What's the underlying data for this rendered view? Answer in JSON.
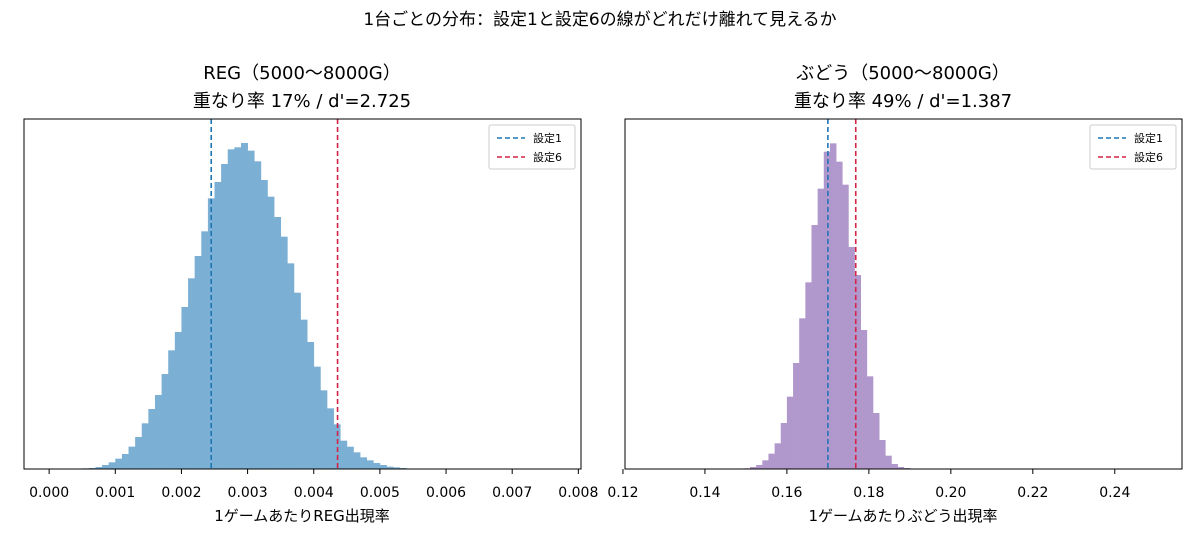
{
  "suptitle": "1台ごとの分布：設定1と設定6の線がどれだけ離れて見えるか",
  "colors": {
    "reg_bar": "#7bafd4",
    "budou_bar": "#b198cc",
    "setting1_line": "#1f77b4",
    "setting6_line": "#d62246"
  },
  "legend": {
    "setting1": "設定1",
    "setting6": "設定6",
    "placement": "upper right"
  },
  "chart_data": [
    {
      "type": "bar",
      "subtype": "histogram",
      "title_line1": "REG（5000〜8000G）",
      "title_line2": "重なり率 17% / d'=2.725",
      "xlabel": "1ゲームあたりREG出現率",
      "ylabel": "",
      "xlim": [
        -0.00038,
        0.00804
      ],
      "ylim": [
        0,
        1.05
      ],
      "xticks": [
        0.0,
        0.001,
        0.002,
        0.003,
        0.004,
        0.005,
        0.006,
        0.007,
        0.008
      ],
      "xtick_labels": [
        "0.000",
        "0.001",
        "0.002",
        "0.003",
        "0.004",
        "0.005",
        "0.006",
        "0.007",
        "0.008"
      ],
      "y_axis_visible": false,
      "bin_width": 0.0001,
      "bins": {
        "start": 0.0004,
        "values": [
          0.001,
          0.002,
          0.003,
          0.006,
          0.012,
          0.02,
          0.031,
          0.045,
          0.067,
          0.096,
          0.137,
          0.18,
          0.222,
          0.285,
          0.356,
          0.411,
          0.486,
          0.572,
          0.639,
          0.713,
          0.812,
          0.861,
          0.915,
          0.959,
          0.965,
          0.978,
          0.955,
          0.923,
          0.867,
          0.817,
          0.756,
          0.697,
          0.617,
          0.529,
          0.448,
          0.381,
          0.307,
          0.236,
          0.182,
          0.134,
          0.085,
          0.067,
          0.05,
          0.035,
          0.026,
          0.018,
          0.012,
          0.007,
          0.005,
          0.003,
          0.001,
          0.001
        ]
      },
      "vlines": [
        {
          "series": "setting1",
          "x": 0.00245
        },
        {
          "series": "setting6",
          "x": 0.00436
        }
      ]
    },
    {
      "type": "bar",
      "subtype": "histogram",
      "title_line1": "ぶどう（5000〜8000G）",
      "title_line2": "重なり率 49% / d'=1.387",
      "xlabel": "1ゲームあたりぶどう出現率",
      "ylabel": "",
      "xlim": [
        0.1205,
        0.2564
      ],
      "ylim": [
        0,
        1.05
      ],
      "xticks": [
        0.12,
        0.14,
        0.16,
        0.18,
        0.2,
        0.22,
        0.24
      ],
      "xtick_labels": [
        "0.12",
        "0.14",
        "0.16",
        "0.18",
        "0.20",
        "0.22",
        "0.24"
      ],
      "y_axis_visible": false,
      "bin_width": 0.0015,
      "bins": {
        "start": 0.1495,
        "values": [
          0.002,
          0.006,
          0.012,
          0.026,
          0.046,
          0.077,
          0.138,
          0.217,
          0.318,
          0.452,
          0.56,
          0.732,
          0.841,
          0.952,
          0.977,
          0.922,
          0.853,
          0.666,
          0.582,
          0.417,
          0.278,
          0.168,
          0.087,
          0.04,
          0.015,
          0.006,
          0.003
        ]
      },
      "vlines": [
        {
          "series": "setting1",
          "x": 0.17
        },
        {
          "series": "setting6",
          "x": 0.1768
        }
      ]
    }
  ]
}
